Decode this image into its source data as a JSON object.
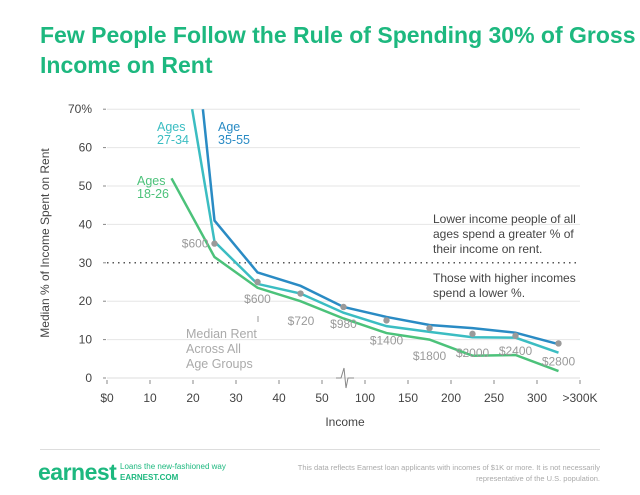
{
  "chart_data": {
    "type": "line",
    "title": "Few People Follow the Rule of Spending 30% of Gross Income on Rent",
    "xlabel": "Income",
    "ylabel": "Median % of Income Spent on Rent",
    "ylim": [
      0,
      70
    ],
    "y_ticks": [
      "0",
      "10",
      "20",
      "30",
      "40",
      "50",
      "60",
      "70%"
    ],
    "x_ticks": [
      {
        "label": "$0",
        "value": 0
      },
      {
        "label": "10",
        "value": 10
      },
      {
        "label": "20",
        "value": 20
      },
      {
        "label": "30",
        "value": 30
      },
      {
        "label": "40",
        "value": 40
      },
      {
        "label": "50",
        "value": 50
      },
      {
        "label": "100",
        "value": 100
      },
      {
        "label": "150",
        "value": 150
      },
      {
        "label": "200",
        "value": 200
      },
      {
        "label": "250",
        "value": 250
      },
      {
        "label": "300",
        "value": 300
      },
      {
        "label": ">300K",
        "value": 350
      }
    ],
    "x_axis_break": "between 50 and 100",
    "reference_line": {
      "y": 30,
      "style": "dotted"
    },
    "grid": "horizontal",
    "series": [
      {
        "name": "Ages 18-26",
        "label_lines": [
          "Ages",
          "18-26"
        ],
        "color": "#4cc27a",
        "points": [
          [
            15,
            52
          ],
          [
            25,
            31.5
          ],
          [
            35,
            23.5
          ],
          [
            45,
            20
          ],
          [
            75,
            15.5
          ],
          [
            125,
            11.7
          ],
          [
            175,
            10
          ],
          [
            225,
            5.8
          ],
          [
            275,
            6
          ],
          [
            325,
            1.8
          ]
        ]
      },
      {
        "name": "Ages 27-34",
        "label_lines": [
          "Ages",
          "27-34"
        ],
        "color": "#3bbdc2",
        "points": [
          [
            19.8,
            70
          ],
          [
            25,
            35.5
          ],
          [
            35,
            24.5
          ],
          [
            45,
            22
          ],
          [
            75,
            17
          ],
          [
            125,
            13.5
          ],
          [
            175,
            12
          ],
          [
            225,
            10.6
          ],
          [
            275,
            10.5
          ],
          [
            325,
            6.6
          ]
        ]
      },
      {
        "name": "Age 35-55",
        "label_lines": [
          "Age",
          "35-55"
        ],
        "color": "#2a8bc4",
        "points": [
          [
            22.3,
            70
          ],
          [
            25,
            41
          ],
          [
            35,
            27.5
          ],
          [
            45,
            24
          ],
          [
            75,
            18.5
          ],
          [
            125,
            15.9
          ],
          [
            175,
            13.8
          ],
          [
            225,
            13
          ],
          [
            275,
            11.8
          ],
          [
            325,
            8.8
          ]
        ]
      }
    ],
    "median_rent": {
      "color": "#9a9a9a",
      "points": [
        {
          "x": 25,
          "y": 35,
          "label": "$600"
        },
        {
          "x": 35,
          "y": 25,
          "label": "$600"
        },
        {
          "x": 45,
          "y": 22,
          "label": "$720"
        },
        {
          "x": 75,
          "y": 18.5,
          "label": "$980"
        },
        {
          "x": 125,
          "y": 15,
          "label": "$1400"
        },
        {
          "x": 175,
          "y": 13,
          "label": "$1800"
        },
        {
          "x": 225,
          "y": 11.5,
          "label": "$2000"
        },
        {
          "x": 275,
          "y": 11,
          "label": "$2400"
        },
        {
          "x": 325,
          "y": 9,
          "label": "$2800"
        }
      ],
      "caption_lines": [
        "Median Rent",
        "Across All",
        "Age Groups"
      ]
    },
    "annotations": {
      "above": [
        "Lower income people of all",
        "ages spend a greater % of",
        "their income on rent."
      ],
      "below": [
        "Those with higher incomes",
        "spend a lower %."
      ]
    }
  },
  "footer": {
    "logo": "earnest",
    "tagline": "Loans the new-fashioned way",
    "site": "EARNEST.COM",
    "note": "This data reflects Earnest loan applicants with incomes of $1K or more. It is not necessarily representative of the U.S. population."
  }
}
